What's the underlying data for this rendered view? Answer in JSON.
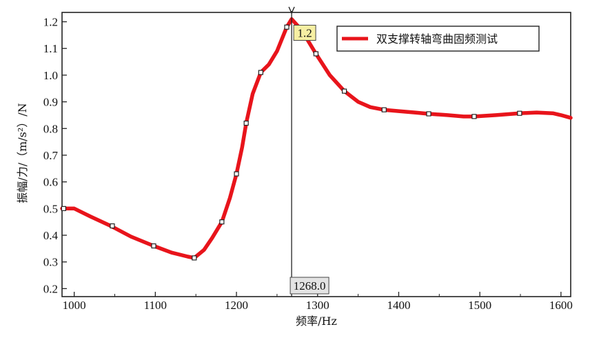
{
  "chart_data": {
    "type": "line",
    "xlabel": "频率/Hz",
    "ylabel": "振幅/力/（m/s²）/N",
    "xlim": [
      985,
      1612
    ],
    "ylim": [
      0.17,
      1.235
    ],
    "x_ticks": [
      1000,
      1100,
      1200,
      1300,
      1400,
      1500,
      1600
    ],
    "x_tick_labels": [
      "1000",
      "1100",
      "1200",
      "1300",
      "1400",
      "1500",
      "1600"
    ],
    "y_ticks": [
      0.2,
      0.3,
      0.4,
      0.5,
      0.6,
      0.7,
      0.8,
      0.9,
      1.0,
      1.1,
      1.2
    ],
    "y_tick_labels": [
      "0.2",
      "0.3",
      "0.4",
      "0.5",
      "0.6",
      "0.7",
      "0.8",
      "0.9",
      "1.0",
      "1.1",
      "1.2"
    ],
    "legend_position": "top-right",
    "series": [
      {
        "name": "双支撑转轴弯曲固频测试",
        "color": "#e8141b",
        "x": [
          985,
          1000,
          1020,
          1045,
          1070,
          1098,
          1120,
          1140,
          1148,
          1160,
          1170,
          1182,
          1192,
          1200,
          1207,
          1212,
          1220,
          1230,
          1240,
          1250,
          1262,
          1268,
          1280,
          1298,
          1315,
          1333,
          1350,
          1365,
          1382,
          1400,
          1420,
          1437,
          1460,
          1480,
          1493,
          1520,
          1549,
          1570,
          1590,
          1600,
          1612
        ],
        "y": [
          0.5,
          0.5,
          0.47,
          0.435,
          0.395,
          0.36,
          0.335,
          0.32,
          0.315,
          0.345,
          0.39,
          0.45,
          0.54,
          0.63,
          0.73,
          0.82,
          0.93,
          1.01,
          1.04,
          1.09,
          1.18,
          1.21,
          1.17,
          1.08,
          1.0,
          0.94,
          0.9,
          0.88,
          0.87,
          0.865,
          0.86,
          0.855,
          0.85,
          0.845,
          0.845,
          0.85,
          0.857,
          0.86,
          0.857,
          0.85,
          0.84
        ]
      }
    ],
    "markers": {
      "x": [
        987,
        1047,
        1098,
        1148,
        1182,
        1200,
        1212,
        1230,
        1262,
        1298,
        1333,
        1382,
        1437,
        1493,
        1549
      ],
      "y": [
        0.5,
        0.435,
        0.36,
        0.315,
        0.45,
        0.63,
        0.82,
        1.01,
        1.18,
        1.08,
        0.94,
        0.87,
        0.855,
        0.845,
        0.857
      ]
    },
    "cursor": {
      "x": 1268.0,
      "y": 1.2,
      "x_label": "1268.0",
      "y_label": "1.2"
    }
  }
}
